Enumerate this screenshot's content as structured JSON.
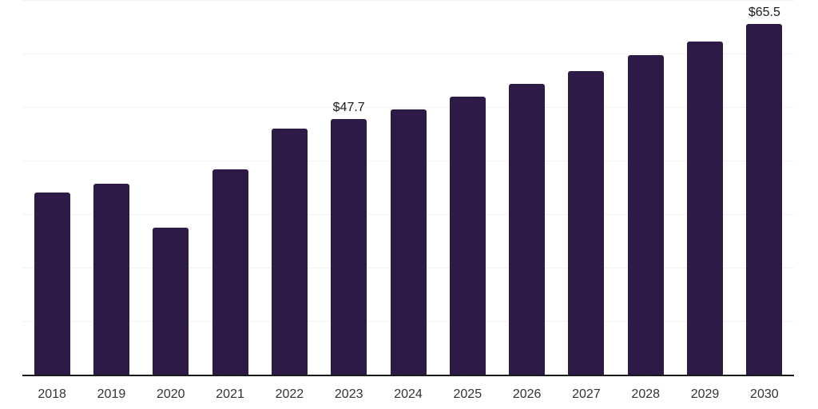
{
  "chart_data": {
    "type": "bar",
    "title": "",
    "xlabel": "",
    "ylabel": "",
    "categories": [
      "2018",
      "2019",
      "2020",
      "2021",
      "2022",
      "2023",
      "2024",
      "2025",
      "2026",
      "2027",
      "2028",
      "2029",
      "2030"
    ],
    "values": [
      34.0,
      35.6,
      27.5,
      38.4,
      45.9,
      47.7,
      49.6,
      51.9,
      54.3,
      56.7,
      59.7,
      62.3,
      65.5
    ],
    "value_labels": [
      null,
      null,
      null,
      null,
      null,
      "$47.7",
      null,
      null,
      null,
      null,
      null,
      null,
      "$65.5"
    ],
    "ylim": [
      0,
      70
    ],
    "grid_step": 10,
    "grid": "on",
    "legend": "none",
    "colors": {
      "bar": "#2e1a47",
      "gridline": "#f2f2f2",
      "axis_line": "#1a1a1a",
      "tick_label": "#333333",
      "value_label": "#1a1a1a"
    }
  }
}
